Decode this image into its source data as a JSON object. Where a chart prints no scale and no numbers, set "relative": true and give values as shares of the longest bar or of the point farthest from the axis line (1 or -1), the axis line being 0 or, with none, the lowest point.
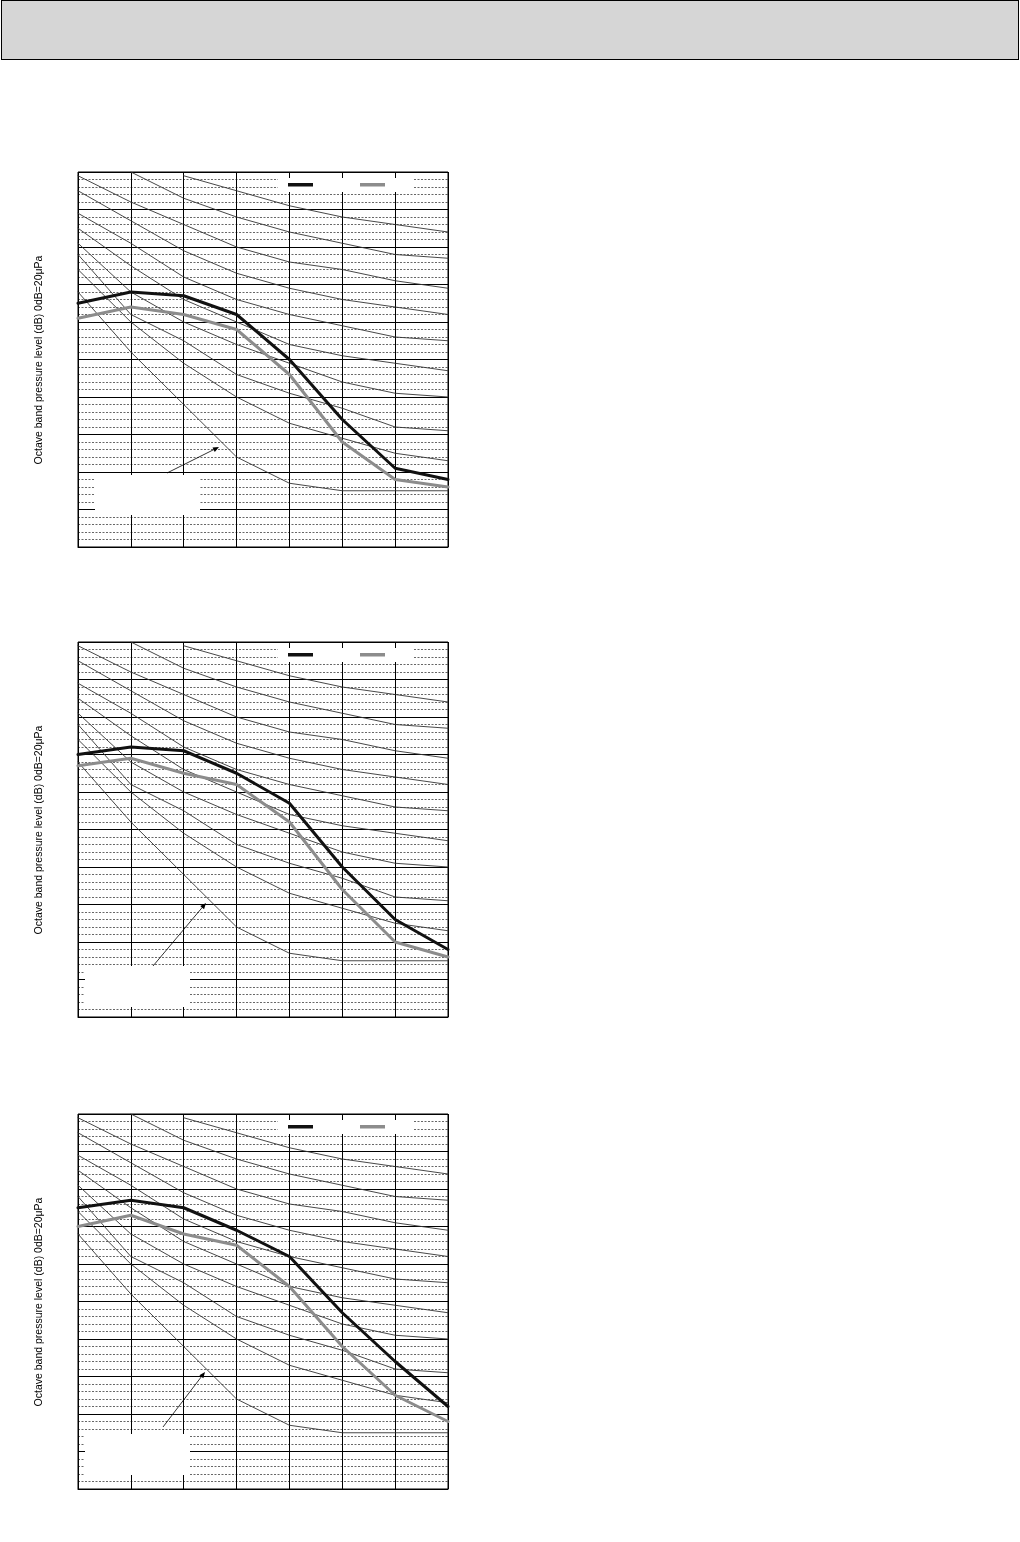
{
  "chart_data": [
    {
      "type": "line",
      "ylabel": "Octave band pressure level (dB) 0dB=20μPa",
      "relative": true,
      "grid": true,
      "marker": "none",
      "line_style": "solid",
      "categories": [
        null,
        null,
        null,
        null,
        null,
        null,
        null,
        null
      ],
      "series": [
        {
          "color": "#111111",
          "values": [
            0.65,
            0.68,
            0.67,
            0.62,
            0.5,
            0.34,
            0.21,
            0.18
          ]
        },
        {
          "color": "#8c8c8c",
          "values": [
            0.61,
            0.64,
            0.62,
            0.58,
            0.46,
            0.28,
            0.18,
            0.16
          ]
        },
        {
          "color": "#333333",
          "values": [
            null,
            null,
            0.99,
            0.95,
            0.91,
            0.88,
            0.86,
            0.84
          ]
        },
        {
          "color": "#333333",
          "values": [
            null,
            1,
            0.93,
            0.88,
            0.84,
            0.81,
            0.78,
            0.77
          ]
        },
        {
          "color": "#333333",
          "values": [
            0.99,
            0.92,
            0.86,
            0.8,
            0.76,
            0.74,
            0.71,
            0.69
          ]
        },
        {
          "color": "#333333",
          "values": [
            0.95,
            0.87,
            0.79,
            0.73,
            0.69,
            0.66,
            0.64,
            0.62
          ]
        },
        {
          "color": "#333333",
          "values": [
            0.89,
            0.81,
            0.72,
            0.66,
            0.62,
            0.59,
            0.56,
            0.55
          ]
        },
        {
          "color": "#333333",
          "values": [
            0.85,
            0.75,
            0.66,
            0.6,
            0.54,
            0.51,
            0.49,
            0.47
          ]
        },
        {
          "color": "#333333",
          "values": [
            0.81,
            0.68,
            0.6,
            0.54,
            0.49,
            0.44,
            0.41,
            0.4
          ]
        },
        {
          "color": "#333333",
          "values": [
            0.78,
            0.62,
            0.55,
            0.46,
            0.41,
            0.37,
            0.32,
            0.31
          ]
        },
        {
          "color": "#333333",
          "values": [
            0.74,
            0.6,
            0.49,
            0.4,
            0.33,
            0.29,
            0.25,
            0.23
          ]
        },
        {
          "color": "#333333",
          "values": [
            0.68,
            0.52,
            0.38,
            0.24,
            0.17,
            0.15,
            0.15,
            0.15
          ]
        }
      ]
    },
    {
      "type": "line",
      "ylabel": "Octave band pressure level (dB) 0dB=20μPa",
      "relative": true,
      "grid": true,
      "marker": "none",
      "line_style": "solid",
      "categories": [
        null,
        null,
        null,
        null,
        null,
        null,
        null,
        null
      ],
      "series": [
        {
          "color": "#111111",
          "values": [
            0.7,
            0.72,
            0.71,
            0.65,
            0.57,
            0.4,
            0.26,
            0.18
          ]
        },
        {
          "color": "#8c8c8c",
          "values": [
            0.67,
            0.69,
            0.65,
            0.62,
            0.52,
            0.34,
            0.2,
            0.16
          ]
        },
        {
          "color": "#333333",
          "values": [
            null,
            null,
            0.99,
            0.95,
            0.91,
            0.88,
            0.86,
            0.84
          ]
        },
        {
          "color": "#333333",
          "values": [
            null,
            1,
            0.93,
            0.88,
            0.84,
            0.81,
            0.78,
            0.77
          ]
        },
        {
          "color": "#333333",
          "values": [
            0.99,
            0.92,
            0.86,
            0.8,
            0.76,
            0.74,
            0.71,
            0.69
          ]
        },
        {
          "color": "#333333",
          "values": [
            0.95,
            0.87,
            0.79,
            0.73,
            0.69,
            0.66,
            0.64,
            0.62
          ]
        },
        {
          "color": "#333333",
          "values": [
            0.89,
            0.81,
            0.72,
            0.66,
            0.62,
            0.59,
            0.56,
            0.55
          ]
        },
        {
          "color": "#333333",
          "values": [
            0.85,
            0.75,
            0.66,
            0.6,
            0.54,
            0.51,
            0.49,
            0.47
          ]
        },
        {
          "color": "#333333",
          "values": [
            0.81,
            0.68,
            0.6,
            0.54,
            0.49,
            0.44,
            0.41,
            0.4
          ]
        },
        {
          "color": "#333333",
          "values": [
            0.78,
            0.62,
            0.55,
            0.46,
            0.41,
            0.37,
            0.32,
            0.31
          ]
        },
        {
          "color": "#333333",
          "values": [
            0.74,
            0.6,
            0.49,
            0.4,
            0.33,
            0.29,
            0.25,
            0.23
          ]
        },
        {
          "color": "#333333",
          "values": [
            0.68,
            0.52,
            0.38,
            0.24,
            0.17,
            0.15,
            0.15,
            0.15
          ]
        }
      ]
    },
    {
      "type": "line",
      "ylabel": "Octave band pressure level (dB) 0dB=20μPa",
      "relative": true,
      "grid": true,
      "marker": "none",
      "line_style": "solid",
      "categories": [
        null,
        null,
        null,
        null,
        null,
        null,
        null,
        null
      ],
      "series": [
        {
          "color": "#111111",
          "values": [
            0.75,
            0.77,
            0.75,
            0.69,
            0.62,
            0.47,
            0.34,
            0.22
          ]
        },
        {
          "color": "#8c8c8c",
          "values": [
            0.7,
            0.73,
            0.68,
            0.65,
            0.54,
            0.38,
            0.25,
            0.18
          ]
        },
        {
          "color": "#333333",
          "values": [
            null,
            null,
            0.99,
            0.95,
            0.91,
            0.88,
            0.86,
            0.84
          ]
        },
        {
          "color": "#333333",
          "values": [
            null,
            1,
            0.93,
            0.88,
            0.84,
            0.81,
            0.78,
            0.77
          ]
        },
        {
          "color": "#333333",
          "values": [
            0.99,
            0.92,
            0.86,
            0.8,
            0.76,
            0.74,
            0.71,
            0.69
          ]
        },
        {
          "color": "#333333",
          "values": [
            0.95,
            0.87,
            0.79,
            0.73,
            0.69,
            0.66,
            0.64,
            0.62
          ]
        },
        {
          "color": "#333333",
          "values": [
            0.89,
            0.81,
            0.72,
            0.66,
            0.62,
            0.59,
            0.56,
            0.55
          ]
        },
        {
          "color": "#333333",
          "values": [
            0.85,
            0.75,
            0.66,
            0.6,
            0.54,
            0.51,
            0.49,
            0.47
          ]
        },
        {
          "color": "#333333",
          "values": [
            0.81,
            0.68,
            0.6,
            0.54,
            0.49,
            0.44,
            0.41,
            0.4
          ]
        },
        {
          "color": "#333333",
          "values": [
            0.78,
            0.62,
            0.55,
            0.46,
            0.41,
            0.37,
            0.32,
            0.31
          ]
        },
        {
          "color": "#333333",
          "values": [
            0.74,
            0.6,
            0.49,
            0.4,
            0.33,
            0.29,
            0.25,
            0.23
          ]
        },
        {
          "color": "#333333",
          "values": [
            0.68,
            0.52,
            0.38,
            0.24,
            0.17,
            0.15,
            0.15,
            0.15
          ]
        }
      ]
    }
  ]
}
